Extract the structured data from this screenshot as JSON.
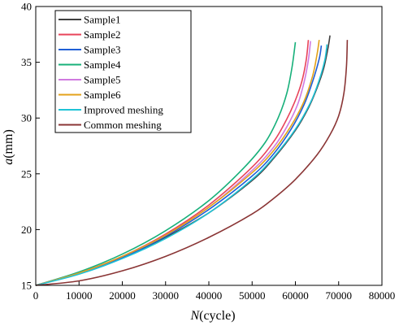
{
  "chart_data": {
    "type": "line",
    "xlabel": "(cycle)",
    "xlabel_var": "N",
    "ylabel": "(mm)",
    "ylabel_var": "a",
    "xlim": [
      0,
      80000
    ],
    "ylim": [
      15,
      40
    ],
    "x_ticks": [
      0,
      10000,
      20000,
      30000,
      40000,
      50000,
      60000,
      70000,
      80000
    ],
    "y_ticks": [
      15,
      20,
      25,
      30,
      35,
      40
    ],
    "grid": false,
    "legend_position": "top-left",
    "series": [
      {
        "name": "Sample1",
        "color": "#404040",
        "x": [
          0,
          10000,
          20000,
          30000,
          40000,
          50000,
          55000,
          60000,
          63000,
          65000,
          66500,
          67500,
          68000
        ],
        "y": [
          15,
          16.1,
          17.5,
          19.3,
          21.5,
          24.4,
          26.4,
          28.9,
          30.9,
          32.7,
          34.4,
          36.2,
          37.4
        ]
      },
      {
        "name": "Sample2",
        "color": "#e8435a",
        "x": [
          0,
          10000,
          20000,
          30000,
          40000,
          50000,
          55000,
          58000,
          60000,
          61500,
          62500,
          63000
        ],
        "y": [
          15,
          16.1,
          17.6,
          19.6,
          22.2,
          25.6,
          27.9,
          29.9,
          31.6,
          33.3,
          35.2,
          37.0
        ]
      },
      {
        "name": "Sample3",
        "color": "#1f5fd6",
        "x": [
          0,
          10000,
          20000,
          30000,
          40000,
          50000,
          55000,
          59000,
          62000,
          64000,
          65500,
          66000
        ],
        "y": [
          15,
          16.1,
          17.5,
          19.4,
          21.8,
          24.8,
          26.8,
          29.0,
          31.2,
          33.3,
          35.3,
          36.5
        ]
      },
      {
        "name": "Sample4",
        "color": "#17b07a",
        "x": [
          0,
          10000,
          20000,
          30000,
          40000,
          48000,
          53000,
          56000,
          58000,
          59200,
          60000
        ],
        "y": [
          15,
          16.2,
          17.8,
          19.9,
          22.6,
          25.5,
          27.8,
          30.0,
          32.2,
          34.5,
          36.8
        ]
      },
      {
        "name": "Sample5",
        "color": "#d07ae0",
        "x": [
          0,
          10000,
          20000,
          30000,
          40000,
          50000,
          55000,
          58000,
          60500,
          62000,
          63000,
          63500
        ],
        "y": [
          15,
          16.1,
          17.6,
          19.5,
          22.0,
          25.3,
          27.4,
          29.2,
          31.2,
          33.2,
          35.2,
          36.9
        ]
      },
      {
        "name": "Sample6",
        "color": "#e3a21a",
        "x": [
          0,
          10000,
          20000,
          30000,
          40000,
          50000,
          55000,
          59000,
          62000,
          64000,
          65000,
          65500
        ],
        "y": [
          15,
          16.1,
          17.6,
          19.5,
          22.0,
          25.1,
          27.1,
          29.3,
          31.5,
          33.8,
          35.7,
          37.0
        ]
      },
      {
        "name": "Improved meshing",
        "color": "#1fc3d6",
        "x": [
          0,
          10000,
          20000,
          30000,
          40000,
          50000,
          55000,
          60000,
          63500,
          65500,
          66800,
          67300
        ],
        "y": [
          15,
          16.0,
          17.4,
          19.2,
          21.5,
          24.5,
          26.5,
          29.0,
          31.4,
          33.4,
          35.2,
          36.6
        ]
      },
      {
        "name": "Common meshing",
        "color": "#8a3535",
        "x": [
          0,
          10000,
          20000,
          30000,
          40000,
          50000,
          55000,
          60000,
          65000,
          68000,
          70000,
          71200,
          71800,
          72000
        ],
        "y": [
          15,
          15.4,
          16.3,
          17.6,
          19.3,
          21.4,
          22.8,
          24.5,
          26.7,
          28.5,
          30.2,
          32.2,
          34.6,
          37.0
        ]
      }
    ]
  }
}
